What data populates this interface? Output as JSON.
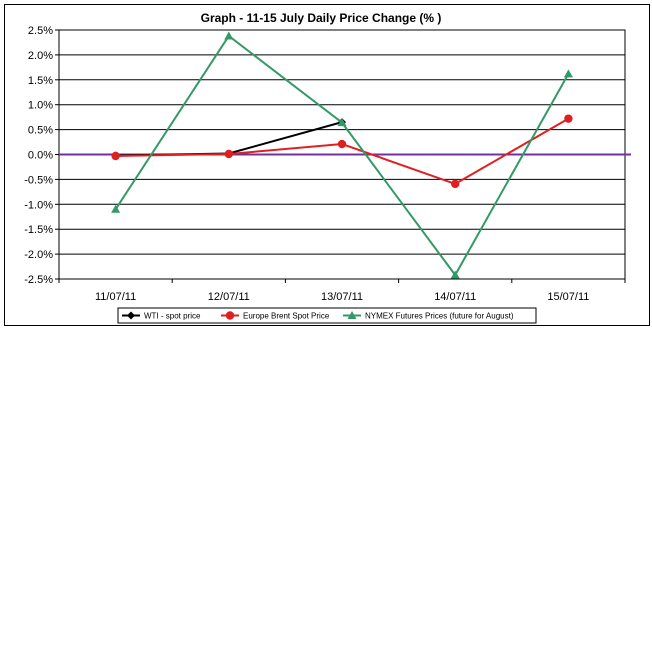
{
  "chart_data": {
    "type": "line",
    "title": "Graph -   11-15 July Daily Price Change (% )",
    "categories": [
      "11/07/11",
      "12/07/11",
      "13/07/11",
      "14/07/11",
      "15/07/11"
    ],
    "ylim": [
      -0.025,
      0.025
    ],
    "yticks": [
      0.025,
      0.02,
      0.015,
      0.01,
      0.005,
      0.0,
      -0.005,
      -0.01,
      -0.015,
      -0.02,
      -0.025
    ],
    "ytick_labels": [
      "2.5%",
      "2.0%",
      "1.5%",
      "1.0%",
      "0.5%",
      "0.0%",
      "-0.5%",
      "-1.0%",
      "-1.5%",
      "-2.0%",
      "-2.5%"
    ],
    "grid": true,
    "legend_position": "bottom",
    "reference_line": {
      "value": 0.0,
      "color": "#7030A0"
    },
    "series": [
      {
        "name": "WTI - spot price",
        "color": "#000000",
        "marker": "diamond",
        "values": [
          -0.0002,
          0.0002,
          0.0065,
          null,
          null
        ]
      },
      {
        "name": "Europe Brent Spot Price",
        "color": "#E02020",
        "marker": "circle",
        "values": [
          -0.0003,
          0.0001,
          0.0021,
          -0.0059,
          0.0072
        ]
      },
      {
        "name": "NYMEX Futures Prices (future for August)",
        "color": "#339966",
        "marker": "triangle",
        "values": [
          -0.011,
          0.0238,
          0.0064,
          -0.0242,
          0.0162
        ]
      }
    ]
  }
}
